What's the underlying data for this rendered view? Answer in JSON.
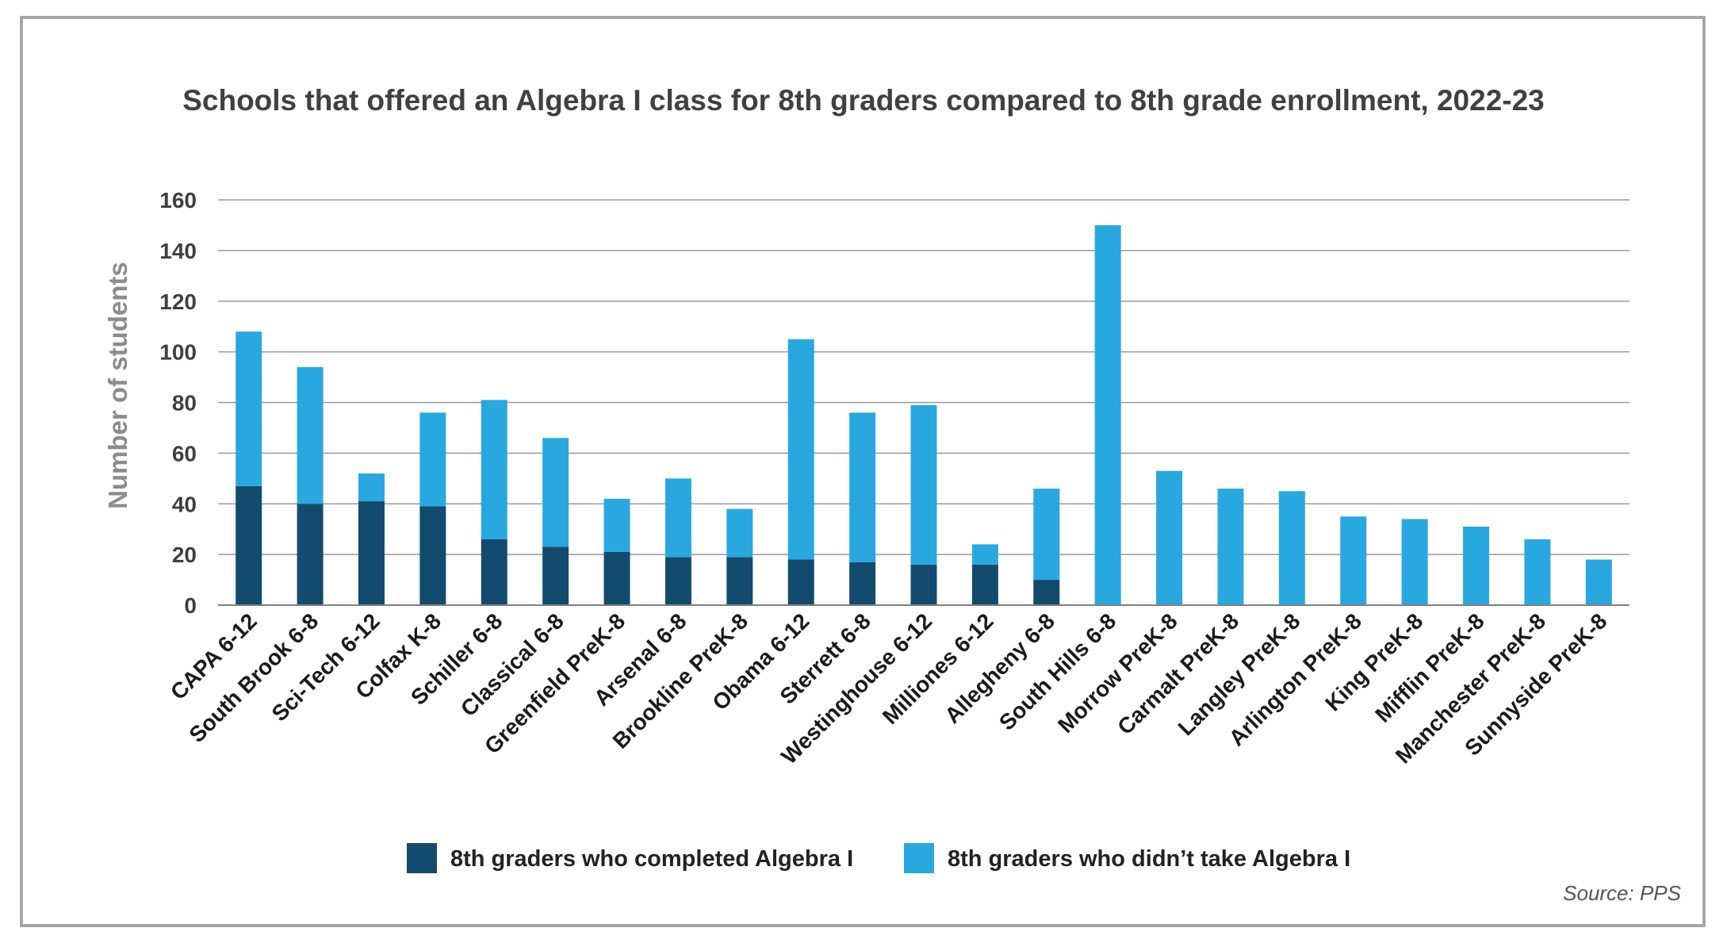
{
  "chart_data": {
    "type": "bar",
    "stacked": true,
    "title": "Schools that offered an Algebra I class for 8th graders compared to 8th grade enrollment, 2022-23",
    "ylabel": "Number of students",
    "xlabel": "",
    "ylim": [
      0,
      160
    ],
    "yticks": [
      0,
      20,
      40,
      60,
      80,
      100,
      120,
      140,
      160
    ],
    "grid": true,
    "legend_position": "bottom",
    "source": "Source: PPS",
    "categories": [
      "CAPA 6-12",
      "South Brook 6-8",
      "Sci-Tech 6-12",
      "Colfax K-8",
      "Schiller 6-8",
      "Classical 6-8",
      "Greenfield PreK-8",
      "Arsenal 6-8",
      "Brookline PreK-8",
      "Obama 6-12",
      "Sterrett 6-8",
      "Westinghouse 6-12",
      "Milliones 6-12",
      "Allegheny 6-8",
      "South Hills 6-8",
      "Morrow PreK-8",
      "Carmalt PreK-8",
      "Langley PreK-8",
      "Arlington PreK-8",
      "King PreK-8",
      "Mifflin PreK-8",
      "Manchester PreK-8",
      "Sunnyside PreK-8"
    ],
    "series": [
      {
        "name": "8th graders who completed Algebra I",
        "color": "#134b6e",
        "values": [
          47,
          40,
          41,
          39,
          26,
          23,
          21,
          19,
          19,
          18,
          17,
          16,
          16,
          10,
          0,
          0,
          0,
          0,
          0,
          0,
          0,
          0,
          0
        ]
      },
      {
        "name": "8th graders who didn’t take Algebra I",
        "color": "#29a8e0",
        "values": [
          61,
          54,
          11,
          37,
          55,
          43,
          21,
          31,
          19,
          87,
          59,
          63,
          8,
          36,
          150,
          53,
          46,
          45,
          35,
          34,
          31,
          26,
          18
        ]
      }
    ]
  },
  "colors": {
    "grid": "#9a9a9a",
    "axis": "#7f7f7f",
    "frame": "#a6a6a6"
  }
}
